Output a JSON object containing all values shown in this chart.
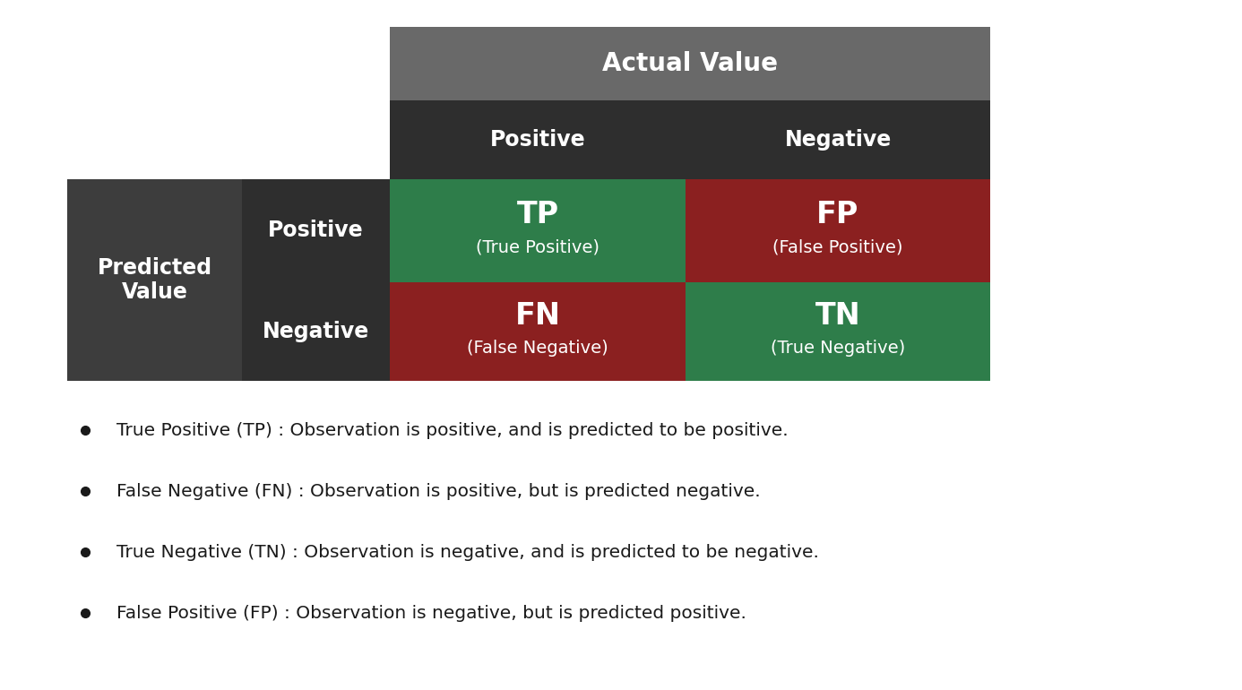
{
  "background_color": "#ffffff",
  "title": "Actual Value",
  "predicted_label": "Predicted\nValue",
  "actual_positive": "Positive",
  "actual_negative": "Negative",
  "predicted_positive": "Positive",
  "predicted_negative": "Negative",
  "tp_label": "TP",
  "tp_sub": "(True Positive)",
  "fp_label": "FP",
  "fp_sub": "(False Positive)",
  "fn_label": "FN",
  "fn_sub": "(False Negative)",
  "tn_label": "TN",
  "tn_sub": "(True Negative)",
  "color_header_outer": "#696969",
  "color_header_inner": "#2e2e2e",
  "color_predicted_outer": "#3d3d3d",
  "color_predicted_inner": "#3d3d3d",
  "color_green": "#2e7d4a",
  "color_red": "#8b2020",
  "text_color": "#ffffff",
  "bullet_text_color": "#1a1a1a",
  "bullet_points": [
    "True Positive (TP) : Observation is positive, and is predicted to be positive.",
    "False Negative (FN) : Observation is positive, but is predicted negative.",
    "True Negative (TN) : Observation is negative, and is predicted to be negative.",
    "False Positive (FP) : Observation is negative, but is predicted positive."
  ],
  "figsize": [
    13.86,
    7.7
  ],
  "dpi": 100
}
